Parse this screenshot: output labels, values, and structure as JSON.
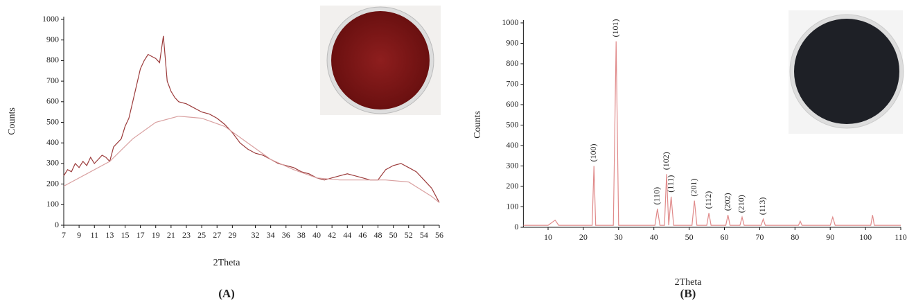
{
  "chart_data": [
    {
      "type": "line",
      "x_label": "2Theta",
      "y_label": "Counts",
      "caption": "(A)",
      "xlim": [
        7,
        56
      ],
      "ylim": [
        0,
        1000
      ],
      "xticks": [
        7,
        9,
        11,
        13,
        15,
        17,
        19,
        21,
        23,
        25,
        27,
        29,
        32,
        34,
        36,
        38,
        40,
        42,
        44,
        46,
        48,
        50,
        52,
        54,
        56
      ],
      "yticks": [
        0,
        100,
        200,
        300,
        400,
        500,
        600,
        700,
        800,
        900,
        1000
      ],
      "series": [
        {
          "color": "#9b3a3a",
          "x": [
            7,
            7.5,
            8,
            8.5,
            9,
            9.5,
            10,
            10.5,
            11,
            11.5,
            12,
            12.5,
            13,
            13.5,
            14,
            14.5,
            15,
            15.5,
            16,
            16.5,
            17,
            17.5,
            18,
            18.5,
            19,
            19.5,
            20,
            20.5,
            21,
            21.5,
            22,
            23,
            24,
            25,
            26,
            27,
            28,
            29,
            30,
            31,
            32,
            33,
            34,
            35,
            36,
            37,
            38,
            39,
            40,
            41,
            42,
            43,
            44,
            45,
            46,
            47,
            48,
            49,
            50,
            51,
            52,
            53,
            54,
            55,
            56
          ],
          "values": [
            240,
            270,
            260,
            300,
            280,
            310,
            290,
            330,
            300,
            320,
            340,
            330,
            310,
            380,
            400,
            420,
            480,
            520,
            600,
            680,
            760,
            800,
            830,
            820,
            810,
            790,
            920,
            700,
            650,
            620,
            600,
            590,
            570,
            550,
            540,
            520,
            490,
            450,
            400,
            370,
            350,
            340,
            320,
            300,
            290,
            280,
            260,
            250,
            230,
            220,
            230,
            240,
            250,
            240,
            230,
            220,
            220,
            270,
            290,
            300,
            280,
            260,
            220,
            180,
            110
          ]
        },
        {
          "color": "#d9a0a0",
          "x": [
            7,
            10,
            13,
            16,
            19,
            22,
            25,
            28,
            31,
            34,
            37,
            40,
            43,
            46,
            49,
            52,
            55,
            56
          ],
          "values": [
            190,
            250,
            310,
            420,
            500,
            530,
            520,
            480,
            400,
            320,
            270,
            230,
            220,
            220,
            220,
            210,
            140,
            110
          ]
        }
      ]
    },
    {
      "type": "line",
      "x_label": "2Theta",
      "y_label": "Counts",
      "caption": "(B)",
      "xlim": [
        3,
        110
      ],
      "ylim": [
        0,
        1000
      ],
      "xticks": [
        10,
        20,
        30,
        40,
        50,
        60,
        70,
        80,
        90,
        100,
        110
      ],
      "yticks": [
        0,
        100,
        200,
        300,
        400,
        500,
        600,
        700,
        800,
        900,
        1000
      ],
      "series": [
        {
          "color": "#e08a8a",
          "x": [
            3,
            10,
            12,
            13,
            20,
            22.5,
            23,
            23.5,
            28.5,
            29.3,
            30,
            40.3,
            41,
            41.7,
            43,
            43.6,
            44.2,
            44.9,
            45.6,
            50.8,
            51.5,
            52.2,
            55,
            55.6,
            56.2,
            60.4,
            61,
            61.6,
            64.4,
            65,
            65.6,
            70.4,
            71,
            71.6,
            81,
            81.5,
            82,
            90,
            90.7,
            91.4,
            101.5,
            102,
            102.5,
            110
          ],
          "values": [
            10,
            10,
            35,
            10,
            10,
            10,
            300,
            10,
            10,
            910,
            10,
            10,
            90,
            10,
            10,
            260,
            10,
            150,
            10,
            10,
            130,
            10,
            10,
            70,
            10,
            10,
            60,
            10,
            10,
            50,
            10,
            10,
            40,
            10,
            10,
            30,
            10,
            10,
            50,
            10,
            10,
            60,
            10,
            10
          ]
        }
      ],
      "annotations": [
        {
          "label": "(100)",
          "x": 23
        },
        {
          "label": "(101)",
          "x": 29.3
        },
        {
          "label": "(110)",
          "x": 41
        },
        {
          "label": "(102)",
          "x": 43.6
        },
        {
          "label": "(111)",
          "x": 44.9
        },
        {
          "label": "(201)",
          "x": 51.5
        },
        {
          "label": "(112)",
          "x": 55.6
        },
        {
          "label": "(202)",
          "x": 61
        },
        {
          "label": "(210)",
          "x": 65
        },
        {
          "label": "(113)",
          "x": 71
        }
      ]
    }
  ]
}
